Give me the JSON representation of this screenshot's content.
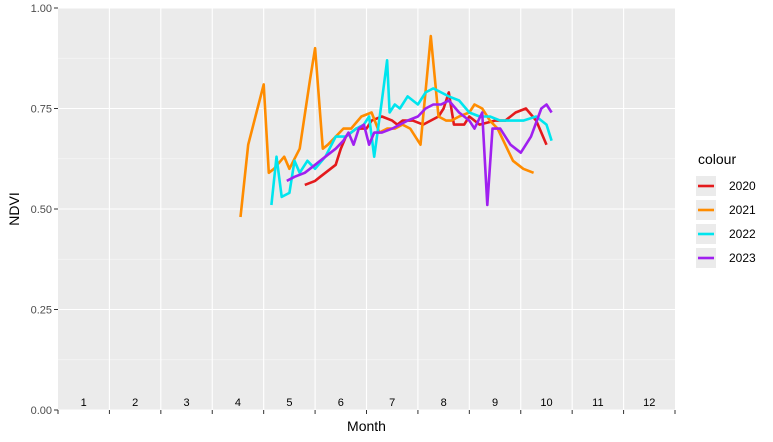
{
  "chart_data": {
    "type": "line",
    "xlabel": "Month",
    "ylabel": "NDVI",
    "xlim": [
      0.5,
      12.5
    ],
    "ylim": [
      0,
      1
    ],
    "y_ticks": [
      "0.00",
      "0.25",
      "0.50",
      "0.75",
      "1.00"
    ],
    "y_tick_values": [
      0,
      0.25,
      0.5,
      0.75,
      1.0
    ],
    "month_labels": [
      "1",
      "2",
      "3",
      "4",
      "5",
      "6",
      "7",
      "8",
      "9",
      "10",
      "11",
      "12"
    ],
    "grid": true,
    "legend_title": "colour",
    "legend_position": "right",
    "series": [
      {
        "name": "2020",
        "color": "#e41a1c",
        "x": [
          5.3,
          5.5,
          5.6,
          5.9,
          6.0,
          6.1,
          6.3,
          6.5,
          6.6,
          6.8,
          7.0,
          7.1,
          7.2,
          7.4,
          7.6,
          7.9,
          8.0,
          8.1,
          8.2,
          8.4,
          8.5,
          8.7,
          9.0,
          9.2,
          9.4,
          9.6,
          9.8,
          10.0
        ],
        "values": [
          0.56,
          0.57,
          0.58,
          0.61,
          0.65,
          0.68,
          0.7,
          0.7,
          0.72,
          0.73,
          0.72,
          0.71,
          0.72,
          0.72,
          0.71,
          0.73,
          0.75,
          0.79,
          0.71,
          0.71,
          0.73,
          0.71,
          0.72,
          0.72,
          0.74,
          0.75,
          0.72,
          0.66
        ]
      },
      {
        "name": "2021",
        "color": "#ff8c00",
        "x": [
          4.05,
          4.2,
          4.5,
          4.6,
          4.7,
          4.9,
          5.0,
          5.2,
          5.4,
          5.5,
          5.65,
          5.75,
          5.9,
          6.05,
          6.2,
          6.4,
          6.6,
          6.75,
          6.9,
          7.05,
          7.2,
          7.35,
          7.55,
          7.75,
          7.9,
          8.05,
          8.15,
          8.3,
          8.5,
          8.6,
          8.75,
          8.9,
          9.05,
          9.2,
          9.35,
          9.55,
          9.75
        ],
        "values": [
          0.48,
          0.66,
          0.81,
          0.59,
          0.6,
          0.63,
          0.6,
          0.65,
          0.82,
          0.9,
          0.65,
          0.66,
          0.68,
          0.7,
          0.7,
          0.73,
          0.74,
          0.69,
          0.7,
          0.7,
          0.71,
          0.7,
          0.66,
          0.93,
          0.73,
          0.72,
          0.72,
          0.73,
          0.74,
          0.76,
          0.75,
          0.72,
          0.7,
          0.66,
          0.62,
          0.6,
          0.59
        ]
      },
      {
        "name": "2022",
        "color": "#00e5ee",
        "x": [
          4.65,
          4.75,
          4.85,
          5.0,
          5.1,
          5.2,
          5.35,
          5.5,
          5.7,
          5.9,
          6.1,
          6.3,
          6.45,
          6.55,
          6.65,
          6.8,
          6.9,
          6.95,
          7.05,
          7.15,
          7.3,
          7.5,
          7.65,
          7.8,
          7.95,
          8.1,
          8.3,
          8.5,
          8.7,
          8.9,
          9.1,
          9.3,
          9.55,
          9.8,
          10.0,
          10.1
        ],
        "values": [
          0.51,
          0.63,
          0.53,
          0.54,
          0.62,
          0.59,
          0.62,
          0.6,
          0.63,
          0.68,
          0.68,
          0.7,
          0.71,
          0.73,
          0.63,
          0.77,
          0.87,
          0.74,
          0.76,
          0.75,
          0.78,
          0.76,
          0.79,
          0.8,
          0.79,
          0.78,
          0.77,
          0.74,
          0.73,
          0.73,
          0.72,
          0.72,
          0.72,
          0.73,
          0.71,
          0.67
        ]
      },
      {
        "name": "2023",
        "color": "#a020f0",
        "x": [
          4.95,
          5.1,
          5.3,
          5.5,
          5.7,
          5.9,
          6.05,
          6.15,
          6.25,
          6.35,
          6.45,
          6.55,
          6.65,
          6.8,
          7.0,
          7.15,
          7.3,
          7.5,
          7.65,
          7.8,
          7.95,
          8.1,
          8.3,
          8.5,
          8.6,
          8.75,
          8.85,
          8.95,
          9.1,
          9.3,
          9.5,
          9.7,
          9.9,
          10.0,
          10.1
        ],
        "values": [
          0.57,
          0.58,
          0.59,
          0.61,
          0.63,
          0.65,
          0.67,
          0.69,
          0.66,
          0.7,
          0.71,
          0.66,
          0.69,
          0.69,
          0.7,
          0.71,
          0.72,
          0.73,
          0.75,
          0.76,
          0.76,
          0.77,
          0.74,
          0.72,
          0.7,
          0.74,
          0.51,
          0.7,
          0.7,
          0.66,
          0.64,
          0.68,
          0.75,
          0.76,
          0.74
        ]
      }
    ]
  }
}
